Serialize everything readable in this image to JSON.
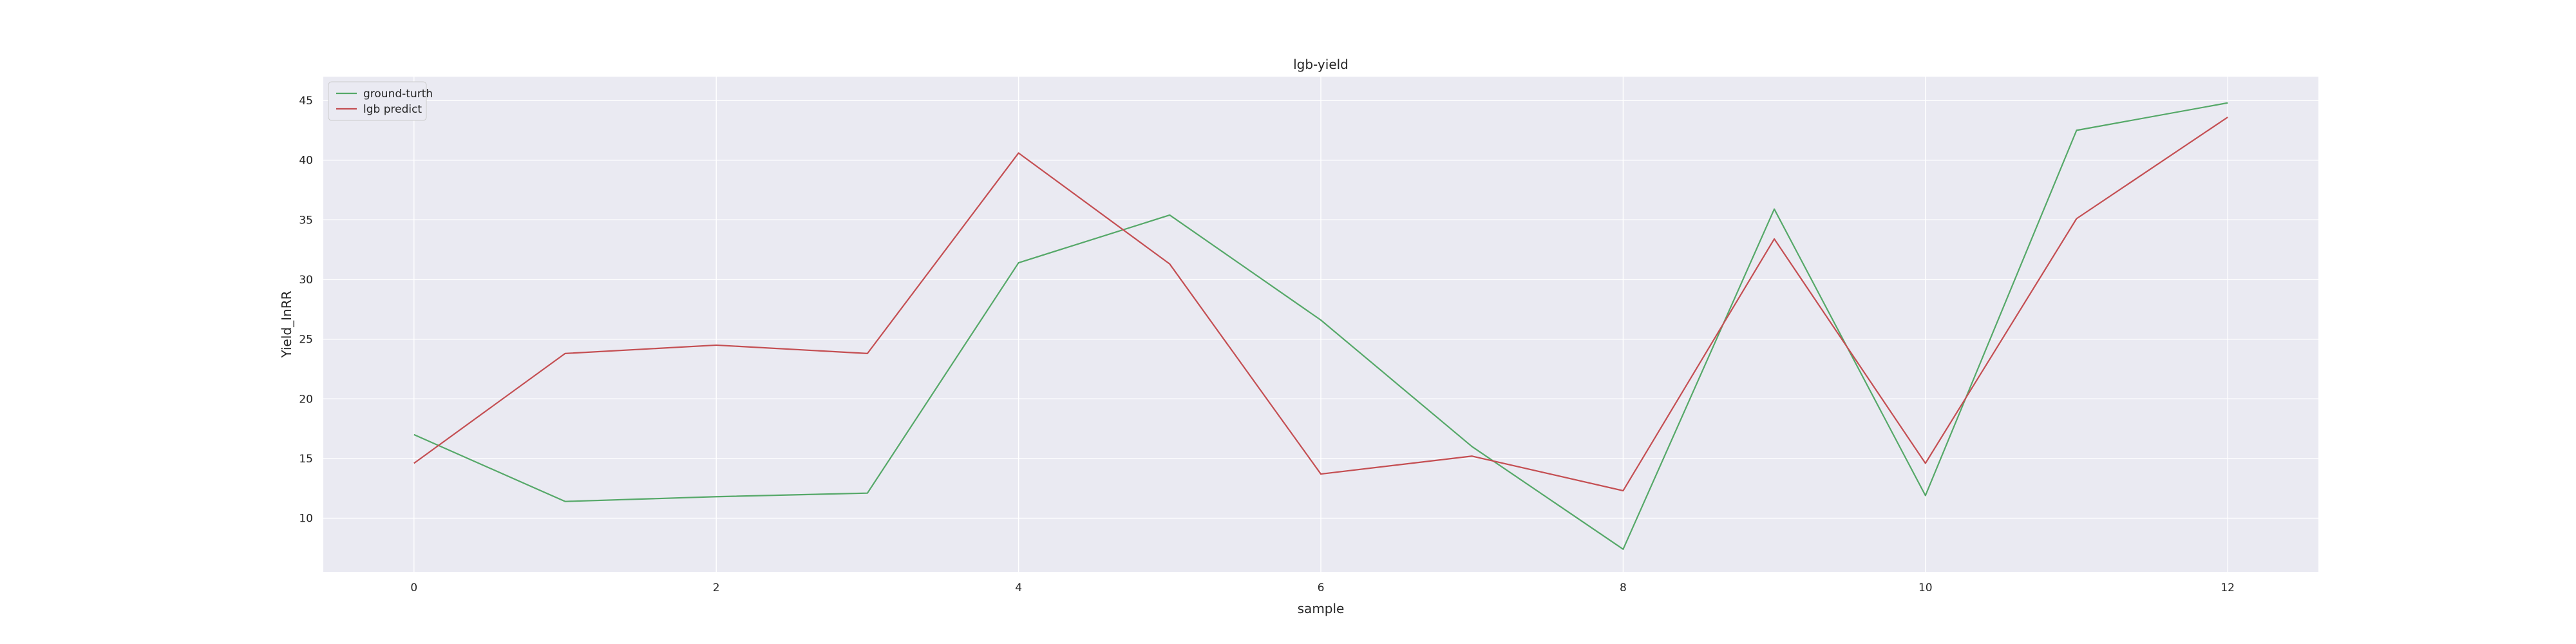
{
  "chart_data": {
    "type": "line",
    "title": "lgb-yield",
    "xlabel": "sample",
    "ylabel": "Yield_InRR",
    "x": [
      0,
      1,
      2,
      3,
      4,
      5,
      6,
      7,
      8,
      9,
      10,
      11,
      12
    ],
    "xticks": [
      0,
      2,
      4,
      6,
      8,
      10,
      12
    ],
    "yticks": [
      10,
      15,
      20,
      25,
      30,
      35,
      40,
      45
    ],
    "xlim": [
      -0.6,
      12.6
    ],
    "ylim": [
      5.5,
      47
    ],
    "grid": true,
    "legend_position": "upper-left",
    "background_color": "#eaeaf2",
    "series": [
      {
        "name": "ground-turth",
        "color": "#55a868",
        "values": [
          17.0,
          11.4,
          11.8,
          12.1,
          31.4,
          35.4,
          26.6,
          16.0,
          7.4,
          35.9,
          11.9,
          42.5,
          44.8
        ]
      },
      {
        "name": "lgb predict",
        "color": "#c44e52",
        "values": [
          14.6,
          23.8,
          24.5,
          23.8,
          40.6,
          31.3,
          13.7,
          15.2,
          12.3,
          33.4,
          14.6,
          35.1,
          43.6
        ]
      }
    ]
  }
}
